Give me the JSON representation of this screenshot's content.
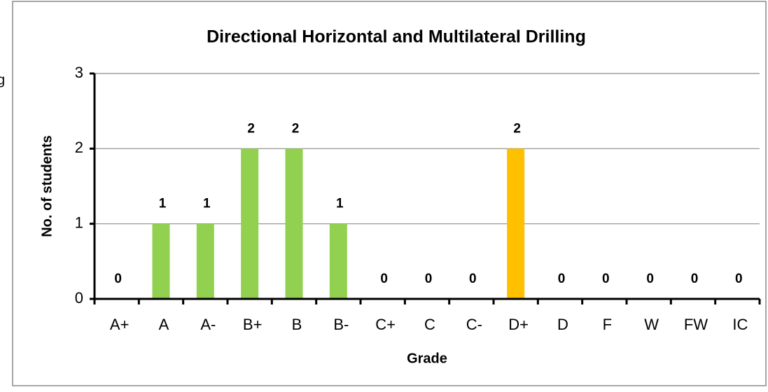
{
  "chart_data": {
    "type": "bar",
    "title": "Directional Horizontal and Multilateral Drilling",
    "annotation": "g",
    "x_label": "Grade",
    "y_label": "No. of students",
    "categories": [
      "A+",
      "A",
      "A-",
      "B+",
      "B",
      "B-",
      "C+",
      "C",
      "C-",
      "D+",
      "D",
      "F",
      "W",
      "FW",
      "IC"
    ],
    "values": [
      0,
      1,
      1,
      2,
      2,
      1,
      0,
      0,
      0,
      2,
      0,
      0,
      0,
      0,
      0
    ],
    "colors": [
      "#92d050",
      "#92d050",
      "#92d050",
      "#92d050",
      "#92d050",
      "#92d050",
      "#92d050",
      "#92d050",
      "#92d050",
      "#ffc000",
      "#92d050",
      "#92d050",
      "#92d050",
      "#92d050",
      "#92d050"
    ],
    "ylim": [
      0,
      3
    ],
    "yticks": [
      0,
      1,
      2,
      3
    ],
    "grid": true
  }
}
